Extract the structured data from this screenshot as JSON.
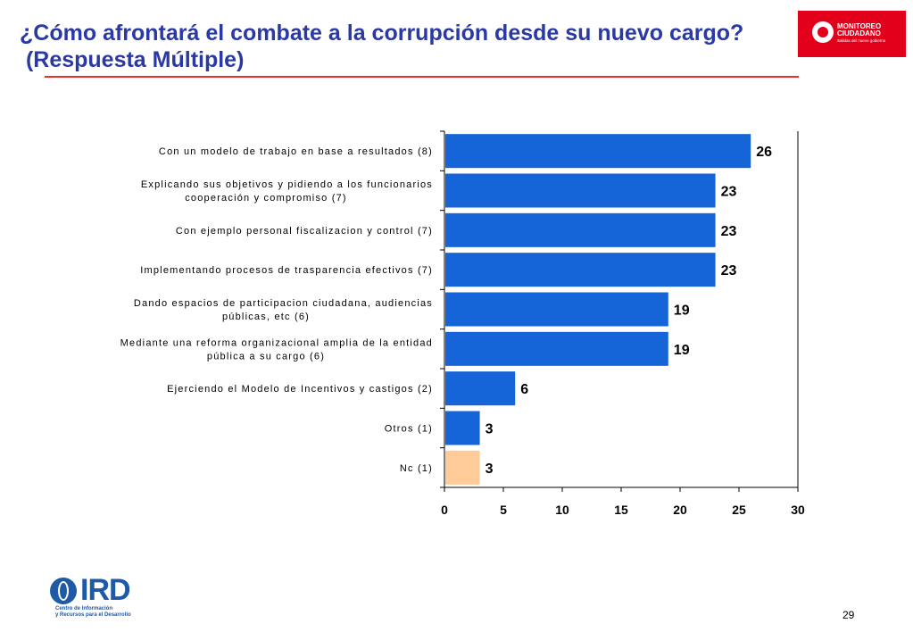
{
  "slide": {
    "title_line1": "¿Cómo afrontará el combate a la corrupción desde su nuevo cargo?",
    "title_line2": " (Respuesta Múltiple)",
    "page_number": "29"
  },
  "logos": {
    "brand_line1": "MONITOREO",
    "brand_line2": "CIUDADANO",
    "brand_tagline": "Salidas del nuevo gobierno",
    "ird_word": "IRD",
    "ird_sub1": "Centro de Información",
    "ird_sub2": "y Recursos para el Desarrollo"
  },
  "colors": {
    "title": "#2b39a5",
    "bar_primary": "#1565d8",
    "bar_highlight": "#ffcc99",
    "rule": "#e0322d",
    "brand_red": "#e3001b"
  },
  "chart_data": {
    "type": "bar",
    "orientation": "horizontal",
    "categories": [
      [
        "Con un modelo de trabajo en base a resultados (8)"
      ],
      [
        "Explicando sus objetivos y pidiendo a los funcionarios",
        "cooperación y compromiso (7)"
      ],
      [
        "Con ejemplo personal fiscalizacion y control  (7)"
      ],
      [
        "Implementando procesos de trasparencia efectivos (7)"
      ],
      [
        "Dando espacios de participacion ciudadana, audiencias",
        "públicas, etc (6)"
      ],
      [
        "Mediante una reforma organizacional amplia de la entidad",
        "pública a su cargo (6)"
      ],
      [
        "Ejerciendo el Modelo de Incentivos y castigos  (2)"
      ],
      [
        "Otros (1)"
      ],
      [
        "Nc (1)"
      ]
    ],
    "values": [
      26,
      23,
      23,
      23,
      19,
      19,
      6,
      3,
      3
    ],
    "data_labels": [
      "26",
      "23",
      "23",
      "23",
      "19",
      "19",
      "6",
      "3",
      "3"
    ],
    "highlight_index": 8,
    "xlim": [
      0,
      30
    ],
    "xticks": [
      "0",
      "5",
      "10",
      "15",
      "20",
      "25",
      "30"
    ],
    "xtick_values": [
      0,
      5,
      10,
      15,
      20,
      25,
      30
    ],
    "title": "",
    "xlabel": "",
    "ylabel": "",
    "grid": false,
    "legend": "none"
  }
}
